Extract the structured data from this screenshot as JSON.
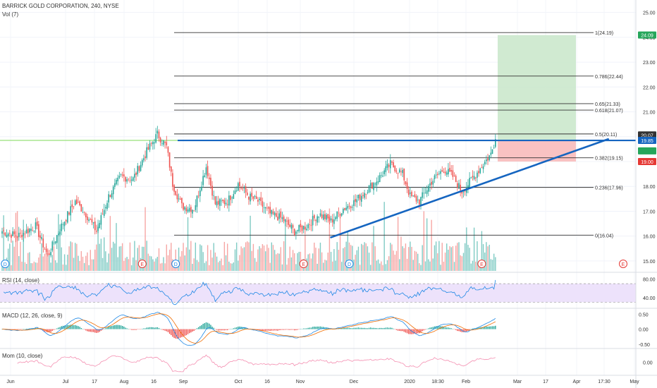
{
  "header": {
    "title": "BARRICK GOLD CORPORATION, 240, NYSE",
    "volume_label": "Vol (7)"
  },
  "chart_data": [
    {
      "type": "candlestick",
      "panel": "price",
      "yticks": [
        15.0,
        16.0,
        17.0,
        18.0,
        19.0,
        20.0,
        21.0,
        22.0,
        23.0,
        24.0,
        25.0
      ],
      "ytick_labels": [
        "15.00",
        "16.00",
        "17.00",
        "18.00",
        "19.00",
        "20.00",
        "21.00",
        "22.00",
        "23.00",
        "24.00",
        "25.00"
      ],
      "ylim": [
        14.6,
        25.5
      ],
      "xtick_labels": [
        "Jun",
        "Jul",
        "17",
        "Aug",
        "16",
        "Sep",
        "Oct",
        "16",
        "Nov",
        "Dec",
        "2020",
        "18:30",
        "Feb",
        "Mar",
        "17",
        "Apr",
        "17:30",
        "May"
      ],
      "price_path_anchors": [
        [
          0,
          16.2
        ],
        [
          10,
          16.0
        ],
        [
          22,
          16.4
        ],
        [
          30,
          15.2
        ],
        [
          38,
          16.3
        ],
        [
          48,
          17.4
        ],
        [
          55,
          16.9
        ],
        [
          62,
          16.2
        ],
        [
          70,
          17.6
        ],
        [
          78,
          18.4
        ],
        [
          86,
          18.3
        ],
        [
          95,
          19.4
        ],
        [
          102,
          20.1
        ],
        [
          108,
          19.6
        ],
        [
          112,
          18.1
        ],
        [
          118,
          17.2
        ],
        [
          126,
          17.1
        ],
        [
          134,
          18.8
        ],
        [
          140,
          17.3
        ],
        [
          148,
          17.4
        ],
        [
          155,
          18.1
        ],
        [
          162,
          17.6
        ],
        [
          168,
          17.4
        ],
        [
          176,
          16.9
        ],
        [
          184,
          16.7
        ],
        [
          192,
          16.2
        ],
        [
          200,
          16.4
        ],
        [
          208,
          16.9
        ],
        [
          216,
          16.6
        ],
        [
          224,
          17.1
        ],
        [
          232,
          17.4
        ],
        [
          240,
          17.9
        ],
        [
          247,
          18.3
        ],
        [
          255,
          18.9
        ],
        [
          263,
          18.5
        ],
        [
          268,
          17.6
        ],
        [
          274,
          17.4
        ],
        [
          282,
          18.2
        ],
        [
          290,
          18.7
        ],
        [
          296,
          18.4
        ],
        [
          302,
          17.8
        ],
        [
          310,
          18.4
        ],
        [
          316,
          18.9
        ],
        [
          321,
          19.3
        ],
        [
          324,
          19.9
        ]
      ],
      "fib_levels": [
        {
          "ratio": 1,
          "price": 24.19,
          "label": "1(24.19)"
        },
        {
          "ratio": 0.786,
          "price": 22.44,
          "label": "0.786(22.44)"
        },
        {
          "ratio": 0.65,
          "price": 21.33,
          "label": "0.65(21.33)"
        },
        {
          "ratio": 0.618,
          "price": 21.07,
          "label": "0.618(21.07)"
        },
        {
          "ratio": 0.5,
          "price": 20.11,
          "label": "0.5(20.11)"
        },
        {
          "ratio": 0.382,
          "price": 19.15,
          "label": "0.382(19.15)"
        },
        {
          "ratio": 0.236,
          "price": 17.96,
          "label": "0.236(17.96)"
        },
        {
          "ratio": 0,
          "price": 16.04,
          "label": "0(16.04)"
        }
      ],
      "horizontal_line_price": 19.85,
      "trendline": {
        "start": [
          216,
          15.95
        ],
        "end": [
          398,
          19.9
        ]
      },
      "position_tool": {
        "entry": 19.85,
        "target": 24.09,
        "stop": 19.0
      },
      "price_tags": [
        {
          "label": "24.09",
          "price": 24.09,
          "color": "#26a65b"
        },
        {
          "label": "20.07",
          "price": 20.07,
          "color": "#333333"
        },
        {
          "label": "19.85",
          "price": 19.85,
          "color": "#1565c0"
        },
        {
          "label": "",
          "price": 19.43,
          "color": "#26a65b"
        },
        {
          "label": "19.00",
          "price": 19.0,
          "color": "#e53935"
        }
      ],
      "event_markers": [
        {
          "bar": 2,
          "letter": "D",
          "kind": "dividend"
        },
        {
          "bar": 92,
          "letter": "E",
          "kind": "earnings"
        },
        {
          "bar": 114,
          "letter": "D",
          "kind": "dividend"
        },
        {
          "bar": 198,
          "letter": "E",
          "kind": "earnings"
        },
        {
          "bar": 228,
          "letter": "D",
          "kind": "dividend"
        },
        {
          "bar": 315,
          "letter": "E",
          "kind": "earnings"
        },
        {
          "bar": 404,
          "letter": "E",
          "kind": "earnings"
        }
      ],
      "colors": {
        "up": "#26a69a",
        "down": "#ef5350",
        "vol_up": "#80cbc4",
        "vol_down": "#f6a6a4",
        "trend": "#1565c0",
        "hline": "#7ed957"
      }
    },
    {
      "type": "line",
      "panel": "rsi",
      "title": "RSI (14, close)",
      "ytick_labels": [
        "80.00",
        "40.00"
      ],
      "yticks": [
        80,
        40
      ],
      "band": [
        30,
        70
      ],
      "ylim": [
        20,
        90
      ],
      "color": "#1e88e5"
    },
    {
      "type": "histogram+line",
      "panel": "macd",
      "title": "MACD (12, 26, close, 9)",
      "ytick_labels": [
        "0.50",
        "0.00",
        "-0.50"
      ],
      "yticks": [
        0.5,
        0.0,
        -0.5
      ],
      "ylim": [
        -0.6,
        0.65
      ],
      "colors": {
        "macd": "#1e88e5",
        "signal": "#ef6c00",
        "hist_up": "#26a69a",
        "hist_down": "#ef5350"
      }
    },
    {
      "type": "line",
      "panel": "momentum",
      "title": "Mom (10, close)",
      "ytick_labels": [
        "0.00"
      ],
      "yticks": [
        0
      ],
      "ylim": [
        -2,
        2
      ],
      "color": "#f48fb1"
    }
  ]
}
